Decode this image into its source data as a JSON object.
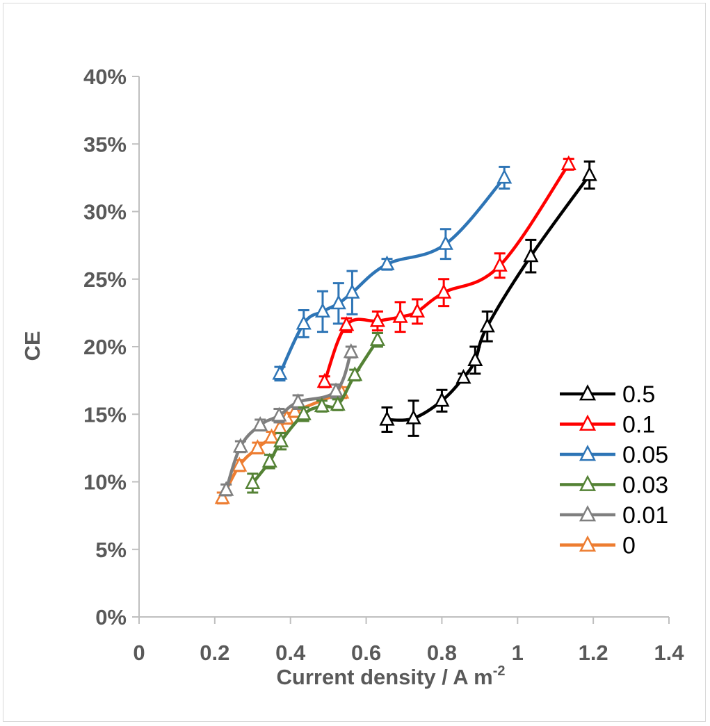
{
  "chart_data": {
    "type": "line",
    "xlabel": "Current density / A m",
    "xlabel_sup": "-2",
    "ylabel": "CE",
    "xlim": [
      0,
      1.4
    ],
    "ylim": [
      0,
      0.4
    ],
    "x_ticks": [
      "0",
      "0.2",
      "0.4",
      "0.6",
      "0.8",
      "1",
      "1.2",
      "1.4"
    ],
    "y_ticks": [
      "0%",
      "5%",
      "10%",
      "15%",
      "20%",
      "25%",
      "30%",
      "35%",
      "40%"
    ],
    "grid": false,
    "legend_position": "right",
    "marker": "open-triangle",
    "series": [
      {
        "name": "0.5",
        "color": "#000000",
        "points": [
          {
            "x": 0.655,
            "y": 0.146,
            "err": 0.009
          },
          {
            "x": 0.725,
            "y": 0.147,
            "err": 0.013
          },
          {
            "x": 0.8,
            "y": 0.16,
            "err": 0.008
          },
          {
            "x": 0.857,
            "y": 0.177,
            "err": 0.003
          },
          {
            "x": 0.888,
            "y": 0.19,
            "err": 0.01
          },
          {
            "x": 0.92,
            "y": 0.215,
            "err": 0.011
          },
          {
            "x": 1.035,
            "y": 0.267,
            "err": 0.012
          },
          {
            "x": 1.19,
            "y": 0.327,
            "err": 0.01
          }
        ]
      },
      {
        "name": "0.1",
        "color": "#ff0000",
        "points": [
          {
            "x": 0.49,
            "y": 0.174,
            "err": 0.004
          },
          {
            "x": 0.548,
            "y": 0.216,
            "err": 0.005
          },
          {
            "x": 0.63,
            "y": 0.219,
            "err": 0.007
          },
          {
            "x": 0.69,
            "y": 0.222,
            "err": 0.011
          },
          {
            "x": 0.735,
            "y": 0.226,
            "err": 0.009
          },
          {
            "x": 0.805,
            "y": 0.24,
            "err": 0.01
          },
          {
            "x": 0.953,
            "y": 0.26,
            "err": 0.009
          },
          {
            "x": 1.135,
            "y": 0.335,
            "err": 0.004
          }
        ]
      },
      {
        "name": "0.05",
        "color": "#2e75b6",
        "points": [
          {
            "x": 0.372,
            "y": 0.18,
            "err": 0.005
          },
          {
            "x": 0.435,
            "y": 0.217,
            "err": 0.01
          },
          {
            "x": 0.485,
            "y": 0.226,
            "err": 0.015
          },
          {
            "x": 0.527,
            "y": 0.232,
            "err": 0.015
          },
          {
            "x": 0.563,
            "y": 0.24,
            "err": 0.016
          },
          {
            "x": 0.655,
            "y": 0.261,
            "err": 0.004
          },
          {
            "x": 0.81,
            "y": 0.276,
            "err": 0.011
          },
          {
            "x": 0.965,
            "y": 0.325,
            "err": 0.008
          }
        ]
      },
      {
        "name": "0.03",
        "color": "#548235",
        "points": [
          {
            "x": 0.3,
            "y": 0.099,
            "err": 0.007
          },
          {
            "x": 0.345,
            "y": 0.115,
            "err": 0.005
          },
          {
            "x": 0.375,
            "y": 0.13,
            "err": 0.006
          },
          {
            "x": 0.435,
            "y": 0.15,
            "err": 0.005
          },
          {
            "x": 0.483,
            "y": 0.156,
            "err": 0.004
          },
          {
            "x": 0.525,
            "y": 0.157,
            "err": 0.004
          },
          {
            "x": 0.57,
            "y": 0.179,
            "err": 0.004
          },
          {
            "x": 0.63,
            "y": 0.205,
            "err": 0.005
          }
        ]
      },
      {
        "name": "0.01",
        "color": "#7f7f7f",
        "points": [
          {
            "x": 0.23,
            "y": 0.094,
            "err": 0.004
          },
          {
            "x": 0.268,
            "y": 0.126,
            "err": 0.004
          },
          {
            "x": 0.32,
            "y": 0.142,
            "err": 0.004
          },
          {
            "x": 0.37,
            "y": 0.149,
            "err": 0.005
          },
          {
            "x": 0.42,
            "y": 0.159,
            "err": 0.005
          },
          {
            "x": 0.52,
            "y": 0.167,
            "err": 0.005
          },
          {
            "x": 0.56,
            "y": 0.196,
            "err": 0.004
          }
        ]
      },
      {
        "name": "0",
        "color": "#ed7d31",
        "points": [
          {
            "x": 0.22,
            "y": 0.088,
            "err": 0.004
          },
          {
            "x": 0.265,
            "y": 0.112,
            "err": 0.004
          },
          {
            "x": 0.313,
            "y": 0.125,
            "err": 0.004
          },
          {
            "x": 0.35,
            "y": 0.133,
            "err": 0.004
          },
          {
            "x": 0.372,
            "y": 0.14,
            "err": 0.004
          },
          {
            "x": 0.39,
            "y": 0.147,
            "err": 0.004
          },
          {
            "x": 0.412,
            "y": 0.152,
            "err": 0.004
          },
          {
            "x": 0.535,
            "y": 0.166,
            "err": 0.004
          }
        ]
      }
    ]
  }
}
